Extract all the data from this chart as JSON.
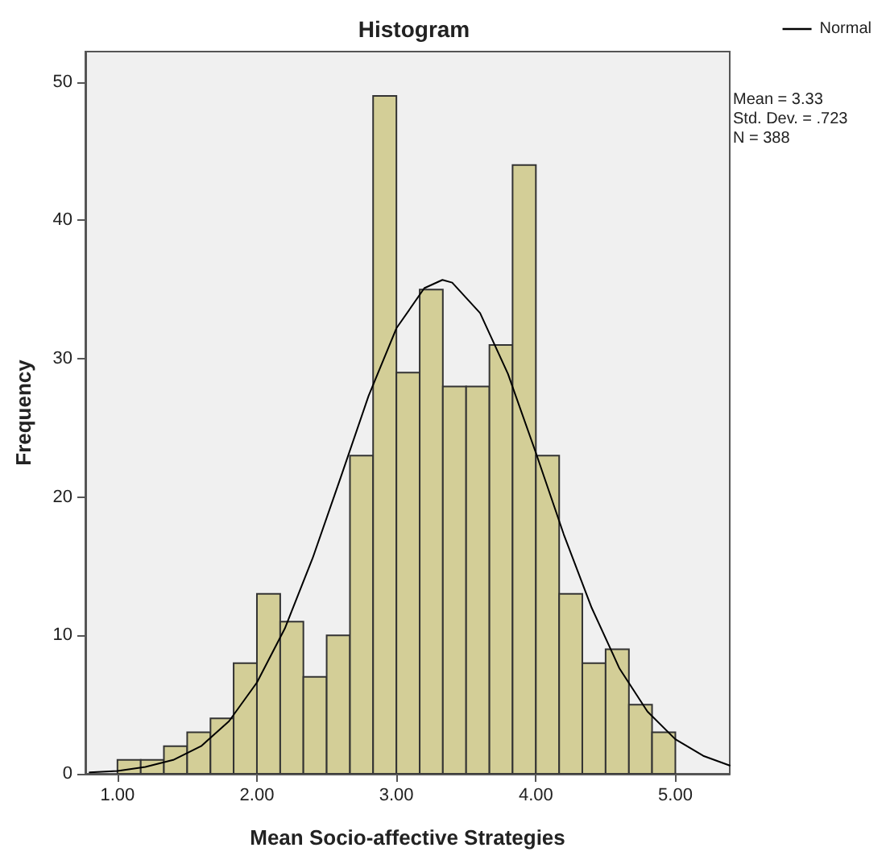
{
  "chart_data": {
    "type": "histogram",
    "title": "Histogram",
    "xlabel": "Mean Socio-affective Strategies",
    "ylabel": "Frequency",
    "bins": [
      1,
      1.167,
      1.333,
      1.5,
      1.667,
      1.833,
      2,
      2.167,
      2.333,
      2.5,
      2.667,
      2.833,
      3,
      3.167,
      3.333,
      3.5,
      3.667,
      3.833,
      4,
      4.167,
      4.333,
      4.5,
      4.667,
      4.833,
      5
    ],
    "values": [
      1,
      1,
      2,
      3,
      4,
      8,
      13,
      11,
      7,
      10,
      23,
      49,
      29,
      35,
      28,
      28,
      31,
      44,
      23,
      13,
      8,
      9,
      5,
      3
    ],
    "color": "#d3ce97",
    "series": [
      {
        "name": "Normal",
        "type": "line",
        "color": "#000000",
        "x": [
          0.8,
          1.0,
          1.2,
          1.4,
          1.6,
          1.8,
          2.0,
          2.2,
          2.4,
          2.6,
          2.8,
          3.0,
          3.2,
          3.33,
          3.4,
          3.6,
          3.8,
          4.0,
          4.2,
          4.4,
          4.6,
          4.8,
          5.0,
          5.2,
          5.39
        ],
        "values": [
          0.1,
          0.2,
          0.5,
          1.0,
          2.0,
          3.8,
          6.6,
          10.5,
          15.6,
          21.4,
          27.3,
          32.2,
          35.1,
          35.7,
          35.5,
          33.3,
          28.9,
          23.2,
          17.3,
          12.0,
          7.6,
          4.5,
          2.5,
          1.3,
          0.6
        ]
      }
    ],
    "xlim": [
      0.77,
      5.39
    ],
    "xticks": [
      {
        "value": 1,
        "label": "1.00"
      },
      {
        "value": 2,
        "label": "2.00"
      },
      {
        "value": 3,
        "label": "3.00"
      },
      {
        "value": 4,
        "label": "4.00"
      },
      {
        "value": 5,
        "label": "5.00"
      }
    ],
    "ylim": [
      0,
      52.2
    ],
    "yticks": [
      0,
      10,
      20,
      30,
      40,
      50
    ],
    "legend": "top right",
    "marker": "none",
    "line_style": "solid",
    "annotations": [
      "Mean = 3.33",
      "Std. Dev. = .723",
      "N = 388"
    ]
  }
}
